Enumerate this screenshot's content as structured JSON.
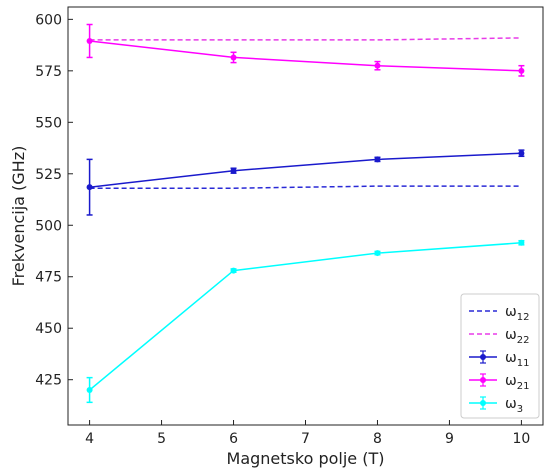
{
  "chart_data": {
    "type": "line",
    "title": "",
    "xlabel": "Magnetsko polje (T)",
    "ylabel": "Frekvencija (GHz)",
    "xlim": [
      3.7,
      10.3
    ],
    "ylim": [
      403,
      606
    ],
    "xticks": [
      4,
      5,
      6,
      7,
      8,
      9,
      10
    ],
    "yticks": [
      425,
      450,
      475,
      500,
      525,
      550,
      575,
      600
    ],
    "grid": false,
    "legend_position": "lower-right",
    "series": [
      {
        "name": "ω12",
        "label_base": "ω",
        "label_sub": "12",
        "style": "dashed",
        "color": "#2a2ad6",
        "markers": false,
        "x": [
          4,
          6,
          8,
          10
        ],
        "y": [
          518,
          518,
          519,
          519
        ]
      },
      {
        "name": "ω22",
        "label_base": "ω",
        "label_sub": "22",
        "style": "dashed",
        "color": "#e83be8",
        "markers": false,
        "x": [
          4,
          6,
          8,
          10
        ],
        "y": [
          590,
          590,
          590,
          591
        ]
      },
      {
        "name": "ω11",
        "label_base": "ω",
        "label_sub": "11",
        "style": "solid",
        "color": "#1a1acc",
        "markers": true,
        "x": [
          4,
          6,
          8,
          10
        ],
        "y": [
          518.5,
          526.5,
          532,
          535
        ],
        "yerr": [
          13.5,
          1.2,
          1.0,
          1.5
        ]
      },
      {
        "name": "ω21",
        "label_base": "ω",
        "label_sub": "21",
        "style": "solid",
        "color": "#ff00ff",
        "markers": true,
        "x": [
          4,
          6,
          8,
          10
        ],
        "y": [
          589.5,
          581.5,
          577.5,
          575
        ],
        "yerr": [
          8,
          2.5,
          2.0,
          2.5
        ]
      },
      {
        "name": "ω3",
        "label_base": "ω",
        "label_sub": "3",
        "style": "solid",
        "color": "#00ffff",
        "markers": true,
        "x": [
          4,
          6,
          8,
          10
        ],
        "y": [
          420,
          478,
          486.5,
          491.5
        ],
        "yerr": [
          6,
          0.8,
          0.8,
          1.0
        ]
      }
    ]
  }
}
